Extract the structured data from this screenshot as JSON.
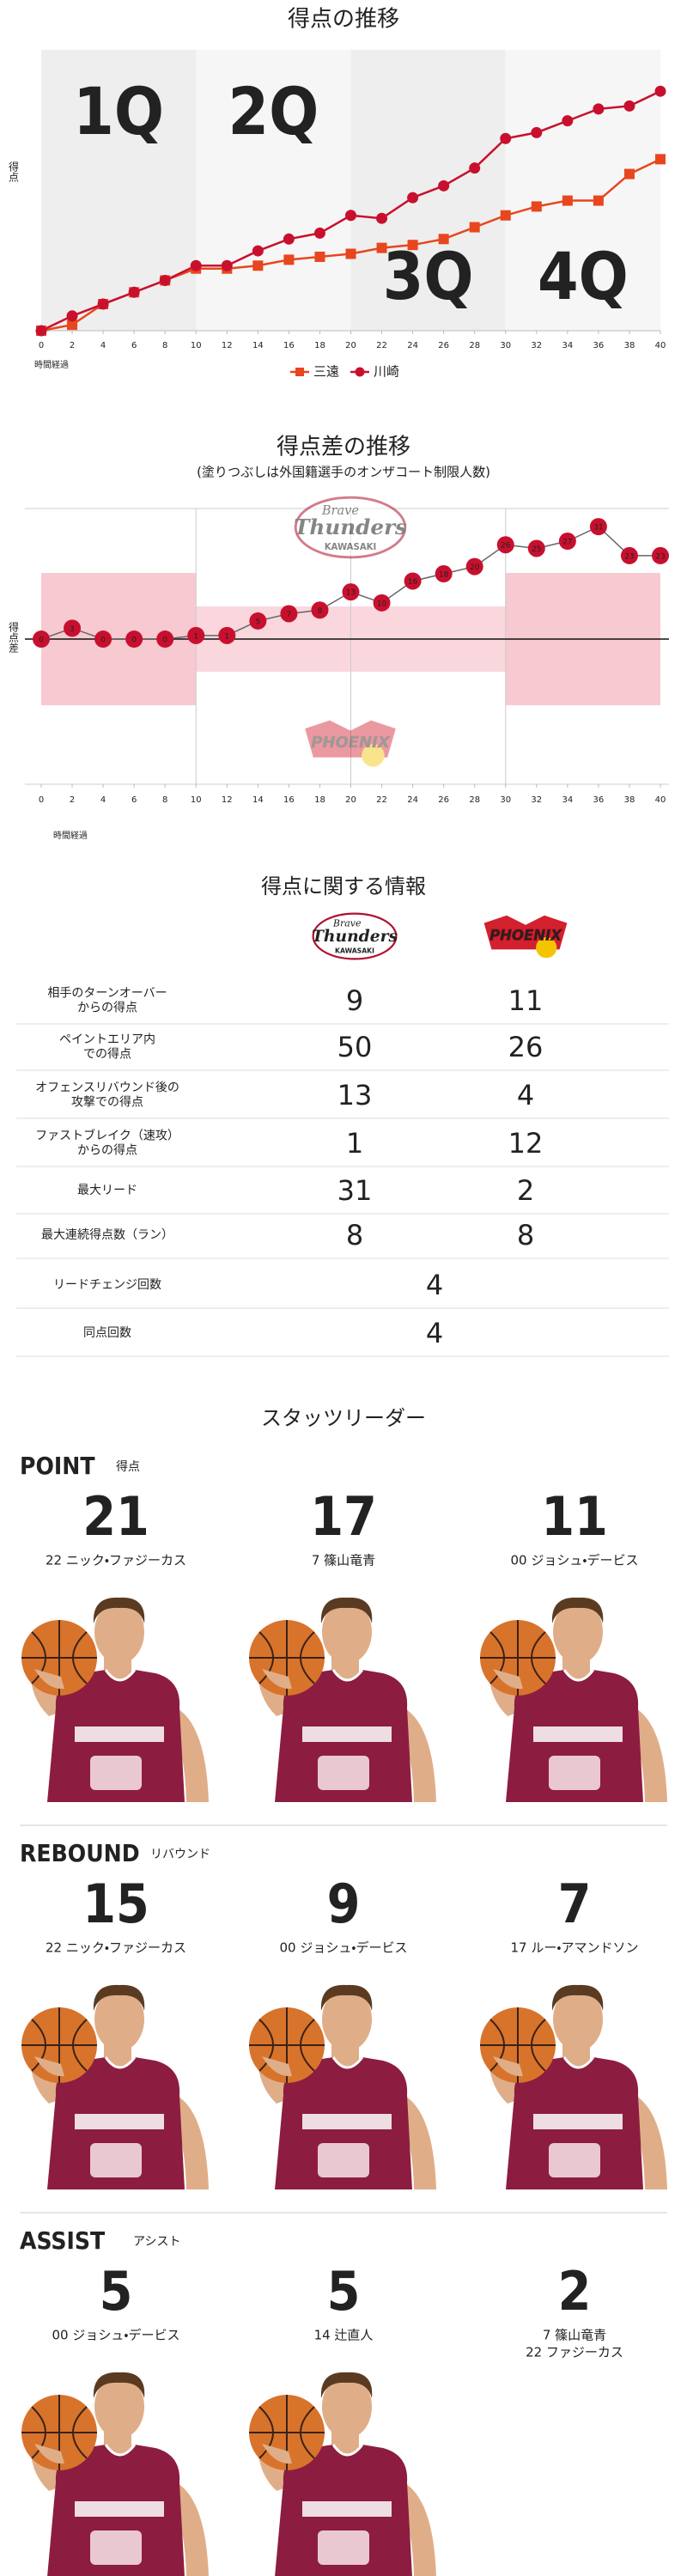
{
  "chart_data": [
    {
      "type": "line",
      "title": "得点の推移",
      "y_label": "得点",
      "x_label": "時間経過",
      "quarters": [
        "1Q",
        "2Q",
        "3Q",
        "4Q"
      ],
      "x": [
        0,
        2,
        4,
        6,
        8,
        10,
        12,
        14,
        16,
        18,
        20,
        22,
        24,
        26,
        28,
        30,
        32,
        34,
        36,
        38,
        40
      ],
      "series": [
        {
          "name": "三遠",
          "color": "#e8461e",
          "marker": "square",
          "values": [
            0,
            2,
            9,
            13,
            17,
            21,
            21,
            22,
            24,
            25,
            26,
            28,
            29,
            31,
            35,
            39,
            42,
            44,
            44,
            53,
            58
          ]
        },
        {
          "name": "川崎",
          "color": "#c8102e",
          "marker": "circle",
          "values": [
            0,
            5,
            9,
            13,
            17,
            22,
            22,
            27,
            31,
            33,
            39,
            38,
            45,
            49,
            55,
            65,
            67,
            71,
            75,
            76,
            81
          ]
        }
      ],
      "xlim": [
        0,
        40
      ],
      "ylim": [
        0,
        95
      ],
      "xticks": [
        0,
        2,
        4,
        6,
        8,
        10,
        12,
        14,
        16,
        18,
        20,
        22,
        24,
        26,
        28,
        30,
        32,
        34,
        36,
        38,
        40
      ],
      "legend": "bottom"
    },
    {
      "type": "line",
      "title": "得点差の推移",
      "subtitle": "(塗りつぶしは外国籍選手のオンザコート制限人数)",
      "y_label": "得点差",
      "x_label": "時間経過",
      "x": [
        0,
        2,
        4,
        6,
        8,
        10,
        12,
        14,
        16,
        18,
        20,
        22,
        24,
        26,
        28,
        30,
        32,
        34,
        36,
        38,
        40
      ],
      "values": [
        0,
        3,
        0,
        0,
        0,
        1,
        1,
        5,
        7,
        8,
        13,
        10,
        16,
        18,
        20,
        26,
        25,
        27,
        31,
        23,
        23
      ],
      "color": "#c8102e",
      "xlim": [
        0,
        40
      ],
      "ylim": [
        -40,
        36
      ],
      "xticks": [
        0,
        2,
        4,
        6,
        8,
        10,
        12,
        14,
        16,
        18,
        20,
        22,
        24,
        26,
        28,
        30,
        32,
        34,
        36,
        38,
        40
      ]
    }
  ],
  "logos": {
    "kawasaki": [
      "Brave",
      "Thunders",
      "KAWASAKI"
    ],
    "sanen": "PHOENIX"
  },
  "table": {
    "title": "得点に関する情報",
    "rows": [
      {
        "label": [
          "相手のターンオーバー",
          "からの得点"
        ],
        "values": [
          9,
          11
        ]
      },
      {
        "label": [
          "ペイントエリア内",
          "での得点"
        ],
        "values": [
          50,
          26
        ]
      },
      {
        "label": [
          "オフェンスリバウンド後の",
          "攻撃での得点"
        ],
        "values": [
          13,
          4
        ]
      },
      {
        "label": [
          "ファストブレイク（速攻）",
          "からの得点"
        ],
        "values": [
          1,
          12
        ]
      },
      {
        "label": [
          "最大リード"
        ],
        "values": [
          31,
          2
        ]
      },
      {
        "label": [
          "最大連続得点数（ラン）"
        ],
        "values": [
          8,
          8
        ]
      },
      {
        "label": [
          "リードチェンジ回数"
        ],
        "values": [
          4
        ]
      },
      {
        "label": [
          "同点回数"
        ],
        "values": [
          4
        ]
      }
    ]
  },
  "stats": {
    "title": "スタッツリーダー",
    "categories": [
      {
        "name": "POINT",
        "label": "得点",
        "leaders": [
          {
            "value": 21,
            "names": [
              "22 ニック・ファジーカス"
            ]
          },
          {
            "value": 17,
            "names": [
              "7 篠山竜青"
            ]
          },
          {
            "value": 11,
            "names": [
              "00 ジョシュ・デービス"
            ]
          }
        ]
      },
      {
        "name": "REBOUND",
        "label": "リバウンド",
        "leaders": [
          {
            "value": 15,
            "names": [
              "22 ニック・ファジーカス"
            ]
          },
          {
            "value": 9,
            "names": [
              "00 ジョシュ・デービス"
            ]
          },
          {
            "value": 7,
            "names": [
              "17 ルー・アマンドソン"
            ]
          }
        ]
      },
      {
        "name": "ASSIST",
        "label": "アシスト",
        "leaders": [
          {
            "value": 5,
            "names": [
              "00 ジョシュ・デービス"
            ]
          },
          {
            "value": 5,
            "names": [
              "14 辻直人"
            ]
          },
          {
            "value": 2,
            "names": [
              "7 篠山竜青",
              "22 ファジーカス"
            ]
          }
        ]
      }
    ]
  }
}
